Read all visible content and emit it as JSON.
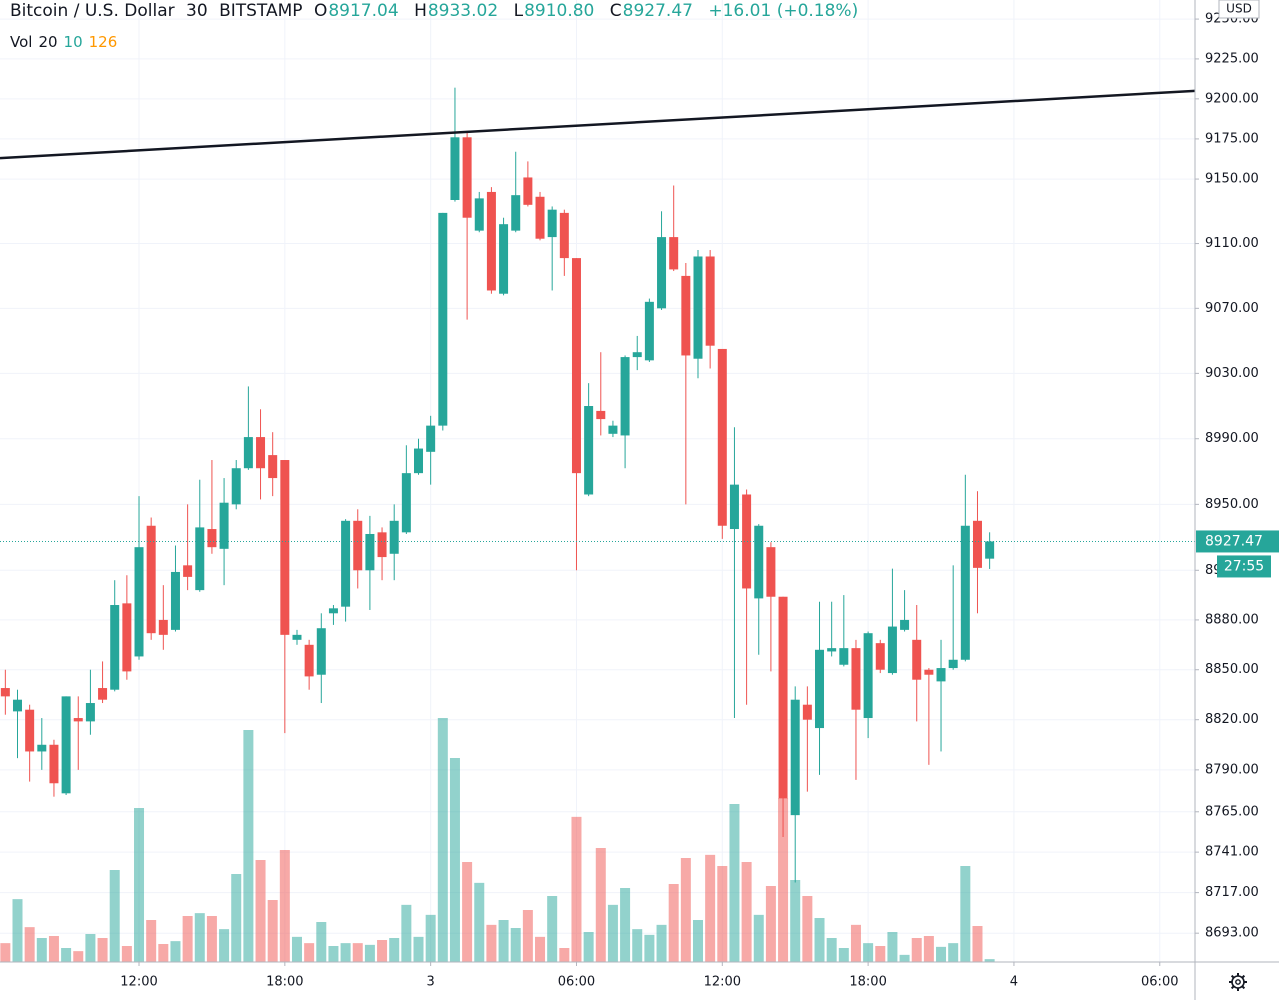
{
  "header": {
    "symbol": "Bitcoin / U.S. Dollar",
    "interval": "30",
    "exchange": "BITSTAMP",
    "open_label": "O",
    "open": "8917.04",
    "high_label": "H",
    "high": "8933.02",
    "low_label": "L",
    "low": "8910.80",
    "close_label": "C",
    "close": "8927.47",
    "change": "+16.01 (+0.18%)",
    "vol_label": "Vol",
    "vol_a": "20",
    "vol_b": "10",
    "vol_c": "126"
  },
  "currency": "USD",
  "last_price_label": "8927.47",
  "countdown": "27:55",
  "chart_data": {
    "type": "candlestick",
    "log_scale": true,
    "grid": true,
    "up_color": "#26a69a",
    "down_color": "#ef5350",
    "volume_up_color": "rgba(38,166,154,0.5)",
    "volume_down_color": "rgba(239,83,80,0.5)",
    "xlim": [
      -0.44,
      97.9
    ],
    "ylim": [
      8676,
      9262
    ],
    "volume_lim": [
      0,
      3367
    ],
    "xticks": [
      {
        "value": 11,
        "label": "12:00"
      },
      {
        "value": 23,
        "label": "18:00"
      },
      {
        "value": 35,
        "label": "3"
      },
      {
        "value": 47,
        "label": "06:00"
      },
      {
        "value": 59,
        "label": "12:00"
      },
      {
        "value": 71,
        "label": "18:00"
      },
      {
        "value": 83,
        "label": "4"
      },
      {
        "value": 95,
        "label": "06:00"
      }
    ],
    "yticks": [
      {
        "value": 9250,
        "label": "9250.00"
      },
      {
        "value": 9225,
        "label": "9225.00"
      },
      {
        "value": 9200,
        "label": "9200.00"
      },
      {
        "value": 9175,
        "label": "9175.00"
      },
      {
        "value": 9150,
        "label": "9150.00"
      },
      {
        "value": 9110,
        "label": "9110.00"
      },
      {
        "value": 9070,
        "label": "9070.00"
      },
      {
        "value": 9030,
        "label": "9030.00"
      },
      {
        "value": 8990,
        "label": "8990.00"
      },
      {
        "value": 8950,
        "label": "8950.00"
      },
      {
        "value": 8910,
        "label": "8910.00"
      },
      {
        "value": 8880,
        "label": "8880.00"
      },
      {
        "value": 8850,
        "label": "8850.00"
      },
      {
        "value": 8820,
        "label": "8820.00"
      },
      {
        "value": 8790,
        "label": "8790.00"
      },
      {
        "value": 8765,
        "label": "8765.00"
      },
      {
        "value": 8741,
        "label": "8741.00"
      },
      {
        "value": 8717,
        "label": "8717.00"
      },
      {
        "value": 8693,
        "label": "8693.00"
      }
    ],
    "open": [
      8839,
      8825,
      8826,
      8801,
      8805,
      8776,
      8821,
      8819,
      8839,
      8838,
      8890,
      8858,
      8937,
      8880,
      8874,
      8913,
      8898,
      8935,
      8923,
      8950,
      8972,
      8991,
      8980,
      8977,
      8868,
      8865,
      8847,
      8884,
      8888,
      8940,
      8910,
      8933,
      8920,
      8933,
      8969,
      8982,
      8998,
      9137,
      9176,
      9118,
      9142,
      9079,
      9118,
      9151,
      9139,
      9114,
      9129,
      9101,
      8956,
      9007,
      8993,
      8992,
      9040,
      9038,
      9070,
      9114,
      9090,
      9039,
      9102,
      9045,
      8935,
      8956,
      8893,
      8924,
      8894,
      8763,
      8829,
      8815,
      8861,
      8853,
      8863,
      8821,
      8866,
      8848,
      8874,
      8868,
      8850,
      8843,
      8851,
      8856,
      8940,
      8917.04
    ],
    "high": [
      8850,
      8838,
      8829,
      8821,
      8808,
      8834,
      8834,
      8850,
      8855,
      8904,
      8907,
      8955,
      8942,
      8901,
      8925,
      8950,
      8965,
      8977,
      8966,
      8977,
      9022,
      9008,
      8994,
      8977,
      8874,
      8868,
      8884,
      8889,
      8941,
      8947,
      8943,
      8936,
      8950,
      8986,
      8990,
      9004,
      9129,
      9207,
      9180,
      9142,
      9145,
      9126,
      9167,
      9161,
      9142,
      9133,
      9131,
      9101,
      9024,
      9043,
      9001,
      9041,
      9053,
      9076,
      9130,
      9146,
      9098,
      9106,
      9106,
      9045,
      8997,
      8959,
      8938,
      8927,
      8894,
      8840,
      8840,
      8891,
      8891,
      8895,
      8868,
      8873,
      8868,
      8911,
      8898,
      8889,
      8851,
      8868,
      8913,
      8968,
      8958,
      8933.02
    ],
    "low": [
      8823,
      8797,
      8783,
      8790,
      8774,
      8775,
      8790,
      8811,
      8830,
      8837,
      8844,
      8856,
      8868,
      8862,
      8873,
      8898,
      8897,
      8920,
      8901,
      8947,
      8971,
      8953,
      8955,
      8812,
      8865,
      8838,
      8830,
      8877,
      8879,
      8899,
      8886,
      8904,
      8904,
      8932,
      8968,
      8962,
      8995,
      9136,
      9063,
      9117,
      9079,
      9078,
      9117,
      9133,
      9112,
      9081,
      9090,
      8910,
      8955,
      8992,
      8991,
      8972,
      9032,
      9037,
      9069,
      9093,
      8950,
      9027,
      9033,
      8929,
      8821,
      8829,
      8859,
      8849,
      8750,
      8723,
      8777,
      8787,
      8858,
      8852,
      8784,
      8809,
      8848,
      8847,
      8873,
      8819,
      8793,
      8801,
      8850,
      8855,
      8884,
      8910.8
    ],
    "close": [
      8834,
      8832,
      8801,
      8805,
      8782,
      8834,
      8819,
      8830,
      8832,
      8889,
      8849,
      8924,
      8872,
      8871,
      8909,
      8906,
      8936,
      8924,
      8951,
      8972,
      8991,
      8972,
      8966,
      8871,
      8871,
      8846,
      8875,
      8887,
      8940,
      8910,
      8932,
      8918,
      8940,
      8969,
      8984,
      8998,
      9129,
      9176,
      9126,
      9138,
      9081,
      9122,
      9140,
      9134,
      9113,
      9131,
      9101,
      8969,
      9010,
      9002,
      8998,
      9040,
      9043,
      9074,
      9114,
      9094,
      9041,
      9102,
      9047,
      8937,
      8962,
      8899,
      8937,
      8894,
      8773,
      8832,
      8820,
      8862,
      8863,
      8863,
      8826,
      8872,
      8850,
      8876,
      8880,
      8844,
      8847,
      8851,
      8856,
      8937,
      8911.46,
      8927.47
    ],
    "volume": [
      66,
      220,
      122,
      84,
      91,
      49,
      38,
      98,
      84,
      322,
      56,
      539,
      147,
      63,
      73,
      161,
      171,
      161,
      115,
      308,
      812,
      357,
      217,
      392,
      88,
      66,
      140,
      56,
      66,
      66,
      60,
      77,
      84,
      200,
      88,
      165,
      854,
      714,
      350,
      277,
      130,
      147,
      119,
      182,
      88,
      231,
      49,
      508,
      105,
      399,
      200,
      259,
      115,
      95,
      130,
      273,
      364,
      147,
      375,
      336,
      553,
      350,
      165,
      266,
      574,
      287,
      231,
      154,
      84,
      49,
      130,
      66,
      56,
      105,
      25,
      84,
      91,
      53,
      66,
      336,
      126,
      10
    ],
    "trendline": {
      "x": [
        -0.44,
        97.9
      ],
      "y": [
        9163,
        9205
      ],
      "color": "#131722"
    }
  }
}
